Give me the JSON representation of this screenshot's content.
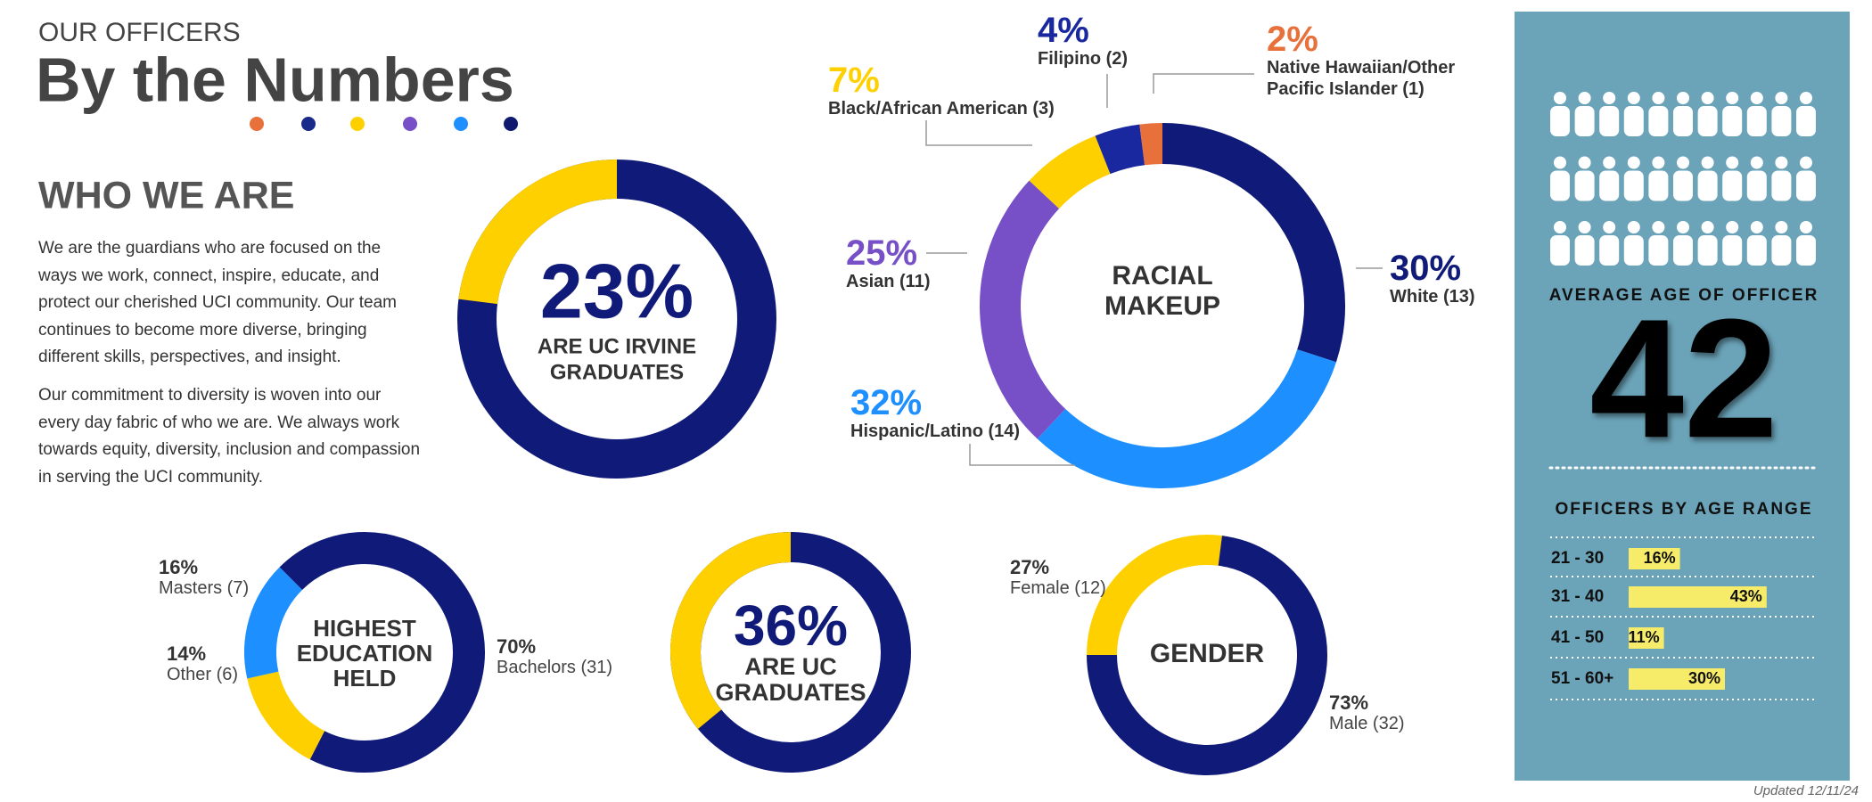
{
  "header": {
    "kicker": "OUR OFFICERS",
    "title": "By the Numbers"
  },
  "intro": {
    "heading": "WHO WE ARE",
    "paragraphs": [
      "We are the guardians who are focused on the ways we work, connect, inspire, educate, and protect our cherished UCI community. Our team continues to become more diverse, bringing different skills, perspectives, and insight.",
      "Our commitment to diversity is woven into our every day fabric of who we are. We always work towards equity, diversity, inclusion and compassion in serving the UCI community."
    ]
  },
  "chart_data": [
    {
      "type": "donut",
      "values": [
        23
      ],
      "value_labels": [
        "23%"
      ],
      "center_lines": [
        "ARE UC IRVINE",
        "GRADUATES"
      ],
      "color": "#ffd000",
      "track_color": "#101a78"
    },
    {
      "type": "donut",
      "center_lines": [
        "RACIAL",
        "MAKEUP"
      ],
      "categories": [
        "White (13)",
        "Hispanic/Latino (14)",
        "Asian (11)",
        "Black/African American (3)",
        "Filipino (2)",
        "Native Hawaiian/Other Pacific Islander (1)"
      ],
      "values": [
        30,
        32,
        25,
        7,
        4,
        2
      ],
      "value_labels": [
        "30%",
        "32%",
        "25%",
        "7%",
        "4%",
        "2%"
      ],
      "colors": [
        "#101a78",
        "#1e8fff",
        "#7750c8",
        "#ffd000",
        "#1a28a0",
        "#e8703a"
      ]
    },
    {
      "type": "donut",
      "center_lines": [
        "HIGHEST",
        "EDUCATION",
        "HELD"
      ],
      "categories": [
        "Bachelors (31)",
        "Other (6)",
        "Masters (7)"
      ],
      "values": [
        70,
        14,
        16
      ],
      "value_labels": [
        "70%",
        "14%",
        "16%"
      ],
      "colors": [
        "#101a78",
        "#ffd000",
        "#1e8fff"
      ]
    },
    {
      "type": "donut",
      "values": [
        36
      ],
      "value_labels": [
        "36%"
      ],
      "center_lines": [
        "ARE UC",
        "GRADUATES"
      ],
      "color": "#ffd000",
      "track_color": "#101a78"
    },
    {
      "type": "donut",
      "center_lines": [
        "GENDER"
      ],
      "categories": [
        "Female (12)",
        "Male (32)"
      ],
      "values": [
        27,
        73
      ],
      "value_labels": [
        "27%",
        "73%"
      ],
      "colors": [
        "#ffd000",
        "#101a78"
      ]
    },
    {
      "type": "bar",
      "orientation": "horizontal",
      "title": "OFFICERS BY AGE RANGE",
      "categories": [
        "21 - 30",
        "31 - 40",
        "41 - 50",
        "51 - 60+"
      ],
      "values": [
        16,
        43,
        11,
        30
      ],
      "value_labels": [
        "16%",
        "43%",
        "11%",
        "30%"
      ],
      "color": "#f7ec6a"
    }
  ],
  "sidebar": {
    "average_age_label": "AVERAGE AGE OF OFFICER",
    "average_age": 42
  },
  "footer": {
    "updated": "Updated 12/11/24"
  }
}
